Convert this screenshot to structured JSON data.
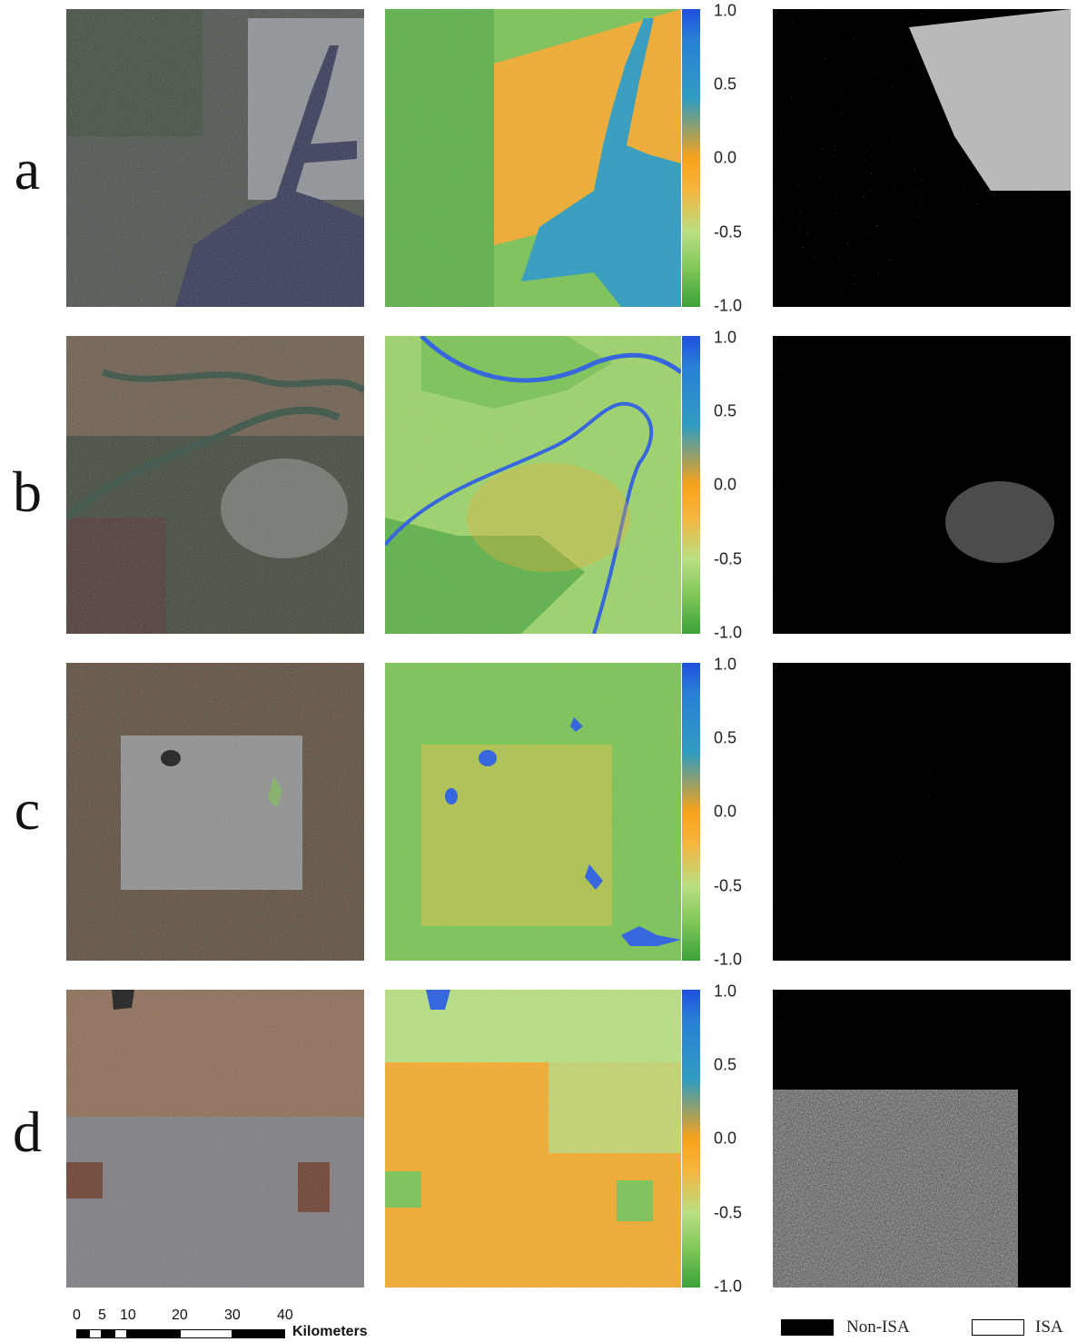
{
  "rows": [
    {
      "label": "a"
    },
    {
      "label": "b"
    },
    {
      "label": "c"
    },
    {
      "label": "d"
    }
  ],
  "colorbar": {
    "ticks": [
      "1.0",
      "0.5",
      "0.0",
      "-0.5",
      "-1.0"
    ],
    "colors": [
      "#1f4fe0",
      "#2f9cc0",
      "#f7a21b",
      "#b9df82",
      "#3aa23a"
    ]
  },
  "scalebar": {
    "ticks": [
      "0",
      "5",
      "10",
      "20",
      "30",
      "40"
    ],
    "unit": "Kilometers"
  },
  "legend": {
    "non_isa": "Non-ISA",
    "isa": "ISA"
  },
  "colors": {
    "water_index": "#2f9cc0",
    "urban_orange": "#f7a21b",
    "vegetation_green": "#7cc456",
    "isa_white": "#ffffff",
    "non_isa_black": "#000000"
  }
}
